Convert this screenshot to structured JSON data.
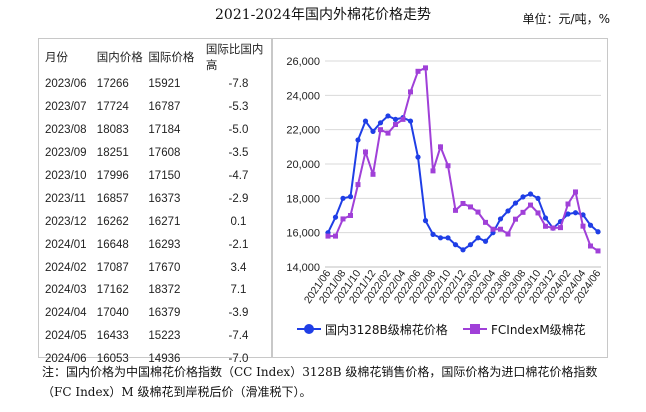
{
  "title": "2021-2024年国内外棉花价格走势",
  "unit_label": "单位：元/吨，%",
  "table": {
    "headers": [
      "月份",
      "国内价格",
      "国际价格",
      "国际比国内高"
    ],
    "rows": [
      [
        "2023/06",
        "17266",
        "15921",
        "-7.8"
      ],
      [
        "2023/07",
        "17724",
        "16787",
        "-5.3"
      ],
      [
        "2023/08",
        "18083",
        "17184",
        "-5.0"
      ],
      [
        "2023/09",
        "18251",
        "17608",
        "-3.5"
      ],
      [
        "2023/10",
        "17996",
        "17150",
        "-4.7"
      ],
      [
        "2023/11",
        "16857",
        "16373",
        "-2.9"
      ],
      [
        "2023/12",
        "16262",
        "16271",
        "0.1"
      ],
      [
        "2024/01",
        "16648",
        "16293",
        "-2.1"
      ],
      [
        "2024/02",
        "17087",
        "17670",
        "3.4"
      ],
      [
        "2024/03",
        "17162",
        "18372",
        "7.1"
      ],
      [
        "2024/04",
        "17040",
        "16379",
        "-3.9"
      ],
      [
        "2024/05",
        "16433",
        "15223",
        "-7.4"
      ],
      [
        "2024/06",
        "16053",
        "14936",
        "-7.0"
      ]
    ]
  },
  "note": "注：国内价格为中国棉花价格指数（CC Index）3128B 级棉花销售价格，国际价格为进口棉花价格指数（FC Index）M 级棉花到岸税后价（滑准税下）。",
  "chart_data": {
    "type": "line",
    "x": [
      "2021/06",
      "2021/07",
      "2021/08",
      "2021/09",
      "2021/10",
      "2021/11",
      "2021/12",
      "2022/01",
      "2022/02",
      "2022/03",
      "2022/04",
      "2022/05",
      "2022/06",
      "2022/07",
      "2022/08",
      "2022/09",
      "2022/10",
      "2022/11",
      "2022/12",
      "2023/01",
      "2023/02",
      "2023/03",
      "2023/04",
      "2023/05",
      "2023/06",
      "2023/07",
      "2023/08",
      "2023/09",
      "2023/10",
      "2023/11",
      "2023/12",
      "2024/01",
      "2024/02",
      "2024/03",
      "2024/04",
      "2024/05",
      "2024/06"
    ],
    "tick_labels": [
      "2021/06",
      "2021/08",
      "2021/10",
      "2021/12",
      "2022/02",
      "2022/04",
      "2022/06",
      "2022/08",
      "2022/10",
      "2022/12",
      "2023/02",
      "2023/04",
      "2023/06",
      "2023/08",
      "2023/10",
      "2023/12",
      "2024/02",
      "2024/04",
      "2024/06"
    ],
    "series": [
      {
        "name": "国内3128B级棉花价格",
        "color": "#1f3ee6",
        "marker": "circle",
        "values": [
          16000,
          16900,
          18000,
          18100,
          21400,
          22500,
          21900,
          22400,
          22800,
          22600,
          22700,
          22500,
          20400,
          16700,
          15900,
          15700,
          15700,
          15300,
          15000,
          15300,
          15700,
          15500,
          16000,
          16800,
          17266,
          17724,
          18083,
          18251,
          17996,
          16857,
          16262,
          16648,
          17087,
          17162,
          17040,
          16433,
          16053
        ]
      },
      {
        "name": "FCIndexM级棉花",
        "color": "#a040d8",
        "marker": "square",
        "values": [
          15800,
          15800,
          16800,
          17000,
          18800,
          20700,
          19400,
          22000,
          21800,
          22300,
          22600,
          24200,
          25400,
          25600,
          19600,
          21000,
          19900,
          17300,
          17700,
          17500,
          17200,
          16600,
          16200,
          16200,
          15921,
          16787,
          17184,
          17608,
          17150,
          16373,
          16271,
          16293,
          17670,
          18372,
          16379,
          15223,
          14936
        ]
      }
    ],
    "ylim": [
      14000,
      26000
    ],
    "yticks": [
      14000,
      16000,
      18000,
      20000,
      22000,
      24000,
      26000
    ],
    "ytick_labels": [
      "14,000",
      "16,000",
      "18,000",
      "20,000",
      "22,000",
      "24,000",
      "26,000"
    ],
    "grid": true,
    "legend": "bottom"
  }
}
